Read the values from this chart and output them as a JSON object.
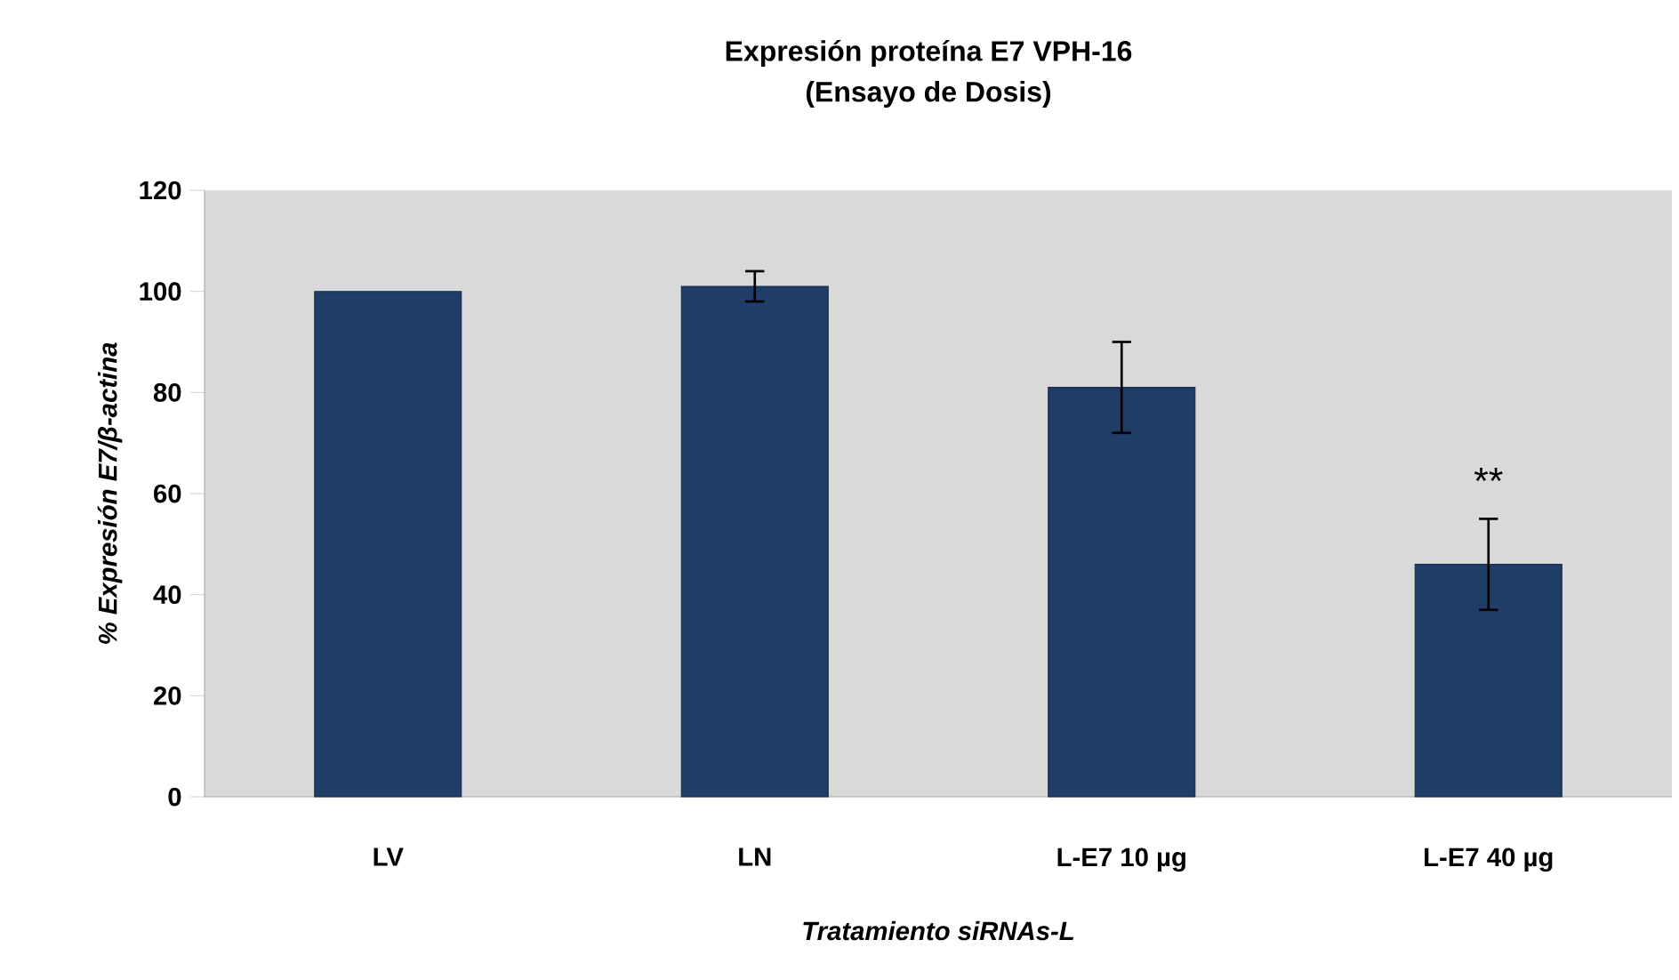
{
  "chart_data": {
    "type": "bar",
    "title": "Expresión proteína E7 VPH-16",
    "subtitle": "(Ensayo de Dosis)",
    "xlabel": "Tratamiento siRNAs-L",
    "ylabel": "% Expresión E7/β-actina",
    "categories": [
      "LV",
      "LN",
      "L-E7 10 µg",
      "L-E7 40 µg"
    ],
    "values": [
      100,
      101,
      81,
      46
    ],
    "errors": [
      null,
      3,
      9,
      9
    ],
    "color": "#1f3d66",
    "ylim": [
      0,
      120
    ],
    "yticks": [
      0,
      20,
      40,
      60,
      80,
      100,
      120
    ],
    "grid": false,
    "annotations": [
      "**"
    ]
  }
}
